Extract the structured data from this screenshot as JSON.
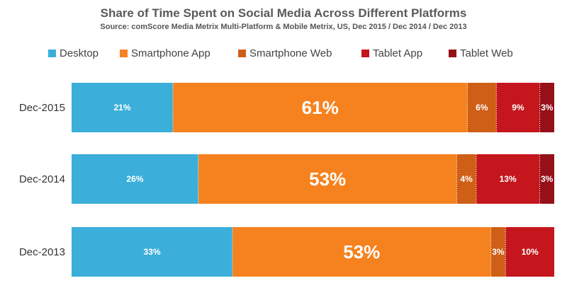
{
  "chart_data": {
    "type": "bar",
    "orientation": "horizontal",
    "stacked": true,
    "title": "Share of Time Spent on Social Media Across Different Platforms",
    "subtitle": "Source: comScore Media Metrix Multi-Platform & Mobile Metrix, US, Dec 2015 / Dec 2014 / Dec 2013",
    "categories": [
      "Dec-2015",
      "Dec-2014",
      "Dec-2013"
    ],
    "series": [
      {
        "name": "Desktop",
        "color": "#3bafd9",
        "values": [
          21,
          26,
          33
        ],
        "labels": [
          "21%",
          "26%",
          "33%"
        ]
      },
      {
        "name": "Smartphone App",
        "color": "#f5821f",
        "values": [
          61,
          53,
          53
        ],
        "labels": [
          "61%",
          "53%",
          "53%"
        ]
      },
      {
        "name": "Smartphone Web",
        "color": "#cf5f17",
        "values": [
          6,
          4,
          3
        ],
        "labels": [
          "6%",
          "4%",
          "3%"
        ]
      },
      {
        "name": "Tablet App",
        "color": "#c4161c",
        "values": [
          9,
          13,
          10
        ],
        "labels": [
          "9%",
          "13%",
          "10%"
        ]
      },
      {
        "name": "Tablet Web",
        "color": "#951019",
        "values": [
          3,
          3,
          0
        ],
        "labels": [
          "3%",
          "3%",
          ""
        ]
      }
    ],
    "xlim": [
      0,
      100
    ],
    "legend_position": "top",
    "grid": false
  }
}
